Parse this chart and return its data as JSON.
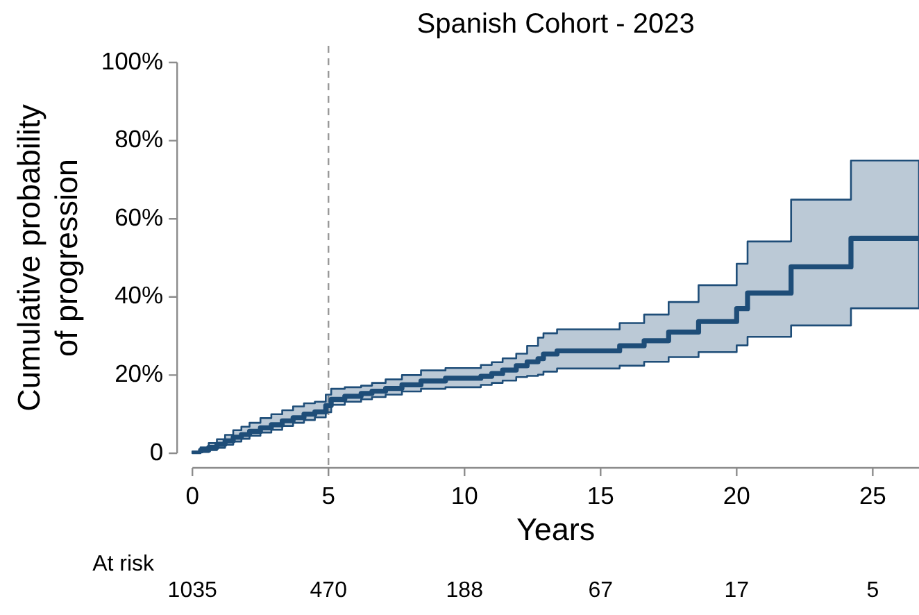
{
  "chart_data": {
    "type": "step",
    "title": "Spanish Cohort - 2023",
    "xlabel": "Years",
    "ylabel": "Cumulative probability\nof progression",
    "xlim": [
      0,
      26.7
    ],
    "xticks": [
      0,
      5,
      10,
      15,
      20,
      25
    ],
    "ylim": [
      0,
      100
    ],
    "yticks": [
      {
        "value": 0,
        "label": "0"
      },
      {
        "value": 20,
        "label": "20%"
      },
      {
        "value": 40,
        "label": "40%"
      },
      {
        "value": 60,
        "label": "60%"
      },
      {
        "value": 80,
        "label": "80%"
      },
      {
        "value": 100,
        "label": "100%"
      }
    ],
    "series": [
      {
        "color": "#1e4d78",
        "x": [
          0,
          0.3,
          0.6,
          0.9,
          1.2,
          1.5,
          1.8,
          2.1,
          2.5,
          2.9,
          3.3,
          3.7,
          4.1,
          4.5,
          4.9,
          5.1,
          5.6,
          6.2,
          6.6,
          7.1,
          7.7,
          8.4,
          9.3,
          10.6,
          11.0,
          11.4,
          11.9,
          12.3,
          12.7,
          12.9,
          13.4,
          15.7,
          16.6,
          17.5,
          18.6,
          20.0,
          20.4,
          22.0,
          24.2,
          26.7
        ],
        "values": [
          0,
          0.8,
          1.5,
          2.3,
          3.2,
          4.1,
          4.8,
          5.6,
          6.5,
          7.3,
          8.3,
          9.1,
          10.0,
          10.6,
          12.2,
          13.8,
          14.6,
          15.3,
          15.9,
          16.6,
          17.5,
          18.5,
          19.2,
          19.7,
          20.4,
          21.3,
          22.4,
          23.4,
          24.2,
          25.4,
          26.2,
          27.5,
          28.8,
          31.0,
          33.7,
          37.0,
          41.0,
          47.7,
          55.0,
          55.0
        ],
        "upper": [
          0.5,
          1.5,
          2.6,
          3.6,
          4.7,
          5.9,
          6.8,
          7.8,
          9.0,
          10.0,
          11.0,
          12.0,
          12.8,
          13.2,
          15.0,
          16.5,
          16.9,
          17.3,
          18.0,
          18.9,
          20.0,
          21.2,
          21.8,
          22.6,
          23.3,
          24.3,
          25.5,
          27.5,
          29.6,
          30.7,
          31.7,
          33.3,
          35.5,
          38.7,
          43.0,
          48.5,
          54.2,
          64.9,
          74.9,
          74.9
        ],
        "lower": [
          0,
          0.3,
          0.8,
          1.4,
          2.2,
          3.0,
          3.7,
          4.5,
          5.3,
          6.0,
          7.0,
          7.8,
          8.5,
          9.2,
          10.5,
          12.4,
          13.2,
          13.8,
          14.4,
          15.0,
          15.8,
          16.5,
          16.9,
          17.5,
          18.0,
          18.6,
          19.5,
          19.8,
          20.1,
          20.9,
          21.7,
          22.4,
          23.4,
          24.6,
          25.9,
          27.6,
          29.8,
          32.7,
          37.1,
          37.1
        ]
      }
    ],
    "ref_lines": [
      {
        "axis": "x",
        "value": 5,
        "color": "#999999",
        "line_style": "dashed"
      }
    ],
    "annotations": [
      "At risk",
      "1035",
      "470",
      "188",
      "67",
      "17",
      "5"
    ]
  }
}
